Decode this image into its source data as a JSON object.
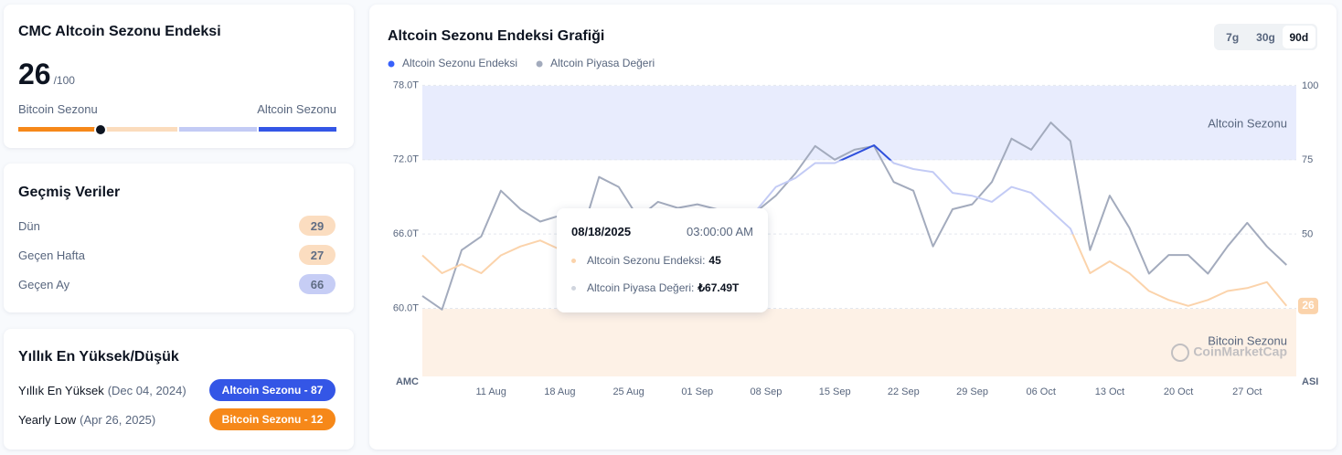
{
  "summary": {
    "title": "CMC Altcoin Sezonu Endeksi",
    "value": 26,
    "scale_label": "/100",
    "left_label": "Bitcoin Sezonu",
    "right_label": "Altcoin Sezonu",
    "gauge": {
      "range": [
        0,
        100
      ],
      "colors": [
        "#f68819",
        "#fbdcbd",
        "#c3cbf5",
        "#3456e6"
      ]
    }
  },
  "history": {
    "title": "Geçmiş Veriler",
    "rows": [
      {
        "label": "Dün",
        "value": 29
      },
      {
        "label": "Geçen Hafta",
        "value": 27
      },
      {
        "label": "Geçen Ay",
        "value": 66
      }
    ]
  },
  "yearly": {
    "title": "Yıllık En Yüksek/Düşük",
    "rows": [
      {
        "label": "Yıllık En Yüksek",
        "date": "(Dec 04, 2024)",
        "badge": "Altcoin Sezonu - 87",
        "color": "#3456e6"
      },
      {
        "label": "Yearly Low",
        "date": "(Apr 26, 2025)",
        "badge": "Bitcoin Sezonu - 12",
        "color": "#f68819"
      }
    ]
  },
  "chart_data": {
    "type": "line",
    "title": "Altcoin Sezonu Endeksi Grafiği",
    "ranges": [
      {
        "label": "7g",
        "active": false
      },
      {
        "label": "30g",
        "active": false
      },
      {
        "label": "90d",
        "active": true
      }
    ],
    "y_label": "AMC",
    "y2_label": "ASI",
    "x": [
      "2025-08-04",
      "2025-08-06",
      "2025-08-08",
      "2025-08-10",
      "2025-08-12",
      "2025-08-14",
      "2025-08-16",
      "2025-08-18",
      "2025-08-20",
      "2025-08-22",
      "2025-08-24",
      "2025-08-26",
      "2025-08-28",
      "2025-08-30",
      "2025-09-01",
      "2025-09-03",
      "2025-09-05",
      "2025-09-07",
      "2025-09-09",
      "2025-09-11",
      "2025-09-13",
      "2025-09-15",
      "2025-09-17",
      "2025-09-19",
      "2025-09-21",
      "2025-09-23",
      "2025-09-25",
      "2025-09-27",
      "2025-09-29",
      "2025-10-01",
      "2025-10-03",
      "2025-10-05",
      "2025-10-07",
      "2025-10-09",
      "2025-10-11",
      "2025-10-13",
      "2025-10-15",
      "2025-10-17",
      "2025-10-19",
      "2025-10-21",
      "2025-10-23",
      "2025-10-25",
      "2025-10-27",
      "2025-10-29",
      "2025-10-31"
    ],
    "xlim": [
      "2025-08-04",
      "2025-11-01"
    ],
    "xticks": [
      {
        "value": "2025-08-11",
        "label": "11 Aug"
      },
      {
        "value": "2025-08-18",
        "label": "18 Aug"
      },
      {
        "value": "2025-08-25",
        "label": "25 Aug"
      },
      {
        "value": "2025-09-01",
        "label": "01 Sep"
      },
      {
        "value": "2025-09-08",
        "label": "08 Sep"
      },
      {
        "value": "2025-09-15",
        "label": "15 Sep"
      },
      {
        "value": "2025-09-22",
        "label": "22 Sep"
      },
      {
        "value": "2025-09-29",
        "label": "29 Sep"
      },
      {
        "value": "2025-10-06",
        "label": "06 Oct"
      },
      {
        "value": "2025-10-13",
        "label": "13 Oct"
      },
      {
        "value": "2025-10-20",
        "label": "20 Oct"
      },
      {
        "value": "2025-10-27",
        "label": "27 Oct"
      }
    ],
    "ylim": [
      54.5,
      78.4
    ],
    "yticks": [
      {
        "value": 60,
        "label": "60.0T"
      },
      {
        "value": 66,
        "label": "66.0T"
      },
      {
        "value": 72,
        "label": "72.0T"
      },
      {
        "value": 78,
        "label": "78.0T"
      }
    ],
    "y2lim": [
      2.3,
      101.8
    ],
    "y2ticks": [
      25,
      50,
      75,
      100
    ],
    "grid": true,
    "bands": [
      {
        "label": "Altcoin Sezonu",
        "range": [
          75,
          100
        ],
        "color": "#e8ecfd"
      },
      {
        "label": "Bitcoin Sezonu",
        "range": [
          0,
          25
        ],
        "color": "#fdf1e6"
      }
    ],
    "watermark": "CoinMarketCap",
    "series": [
      {
        "name": "Altcoin Sezonu Endeksi",
        "color": "#3861fb",
        "axis": "y2",
        "zone_colors": [
          "#f68819",
          "#fbd3ab",
          "#c3cbf5",
          "#2f50dc"
        ],
        "values": [
          43,
          37,
          40,
          37,
          43,
          46,
          48,
          45,
          49,
          55,
          57,
          54,
          55,
          56,
          57,
          55,
          57,
          58,
          66,
          69,
          74,
          74,
          77,
          80,
          74,
          72,
          71,
          64,
          63,
          61,
          66,
          64,
          58,
          52,
          37,
          41,
          37,
          31,
          28,
          26,
          28,
          31,
          32,
          34,
          26
        ]
      },
      {
        "name": "Altcoin Piyasa Değeri",
        "color": "#a3abbd",
        "values": [
          61.0,
          59.9,
          64.7,
          65.8,
          69.5,
          68.0,
          67.0,
          67.49,
          65.4,
          70.6,
          69.8,
          67.3,
          68.6,
          68.1,
          68.4,
          68.0,
          67.6,
          67.8,
          69.1,
          70.9,
          73.1,
          72.0,
          72.8,
          73.1,
          70.2,
          69.5,
          65.0,
          68.0,
          68.4,
          70.2,
          73.7,
          72.8,
          75.0,
          73.5,
          64.7,
          69.1,
          66.5,
          62.8,
          64.3,
          64.3,
          62.8,
          65.0,
          66.9,
          65.0,
          63.5
        ]
      }
    ],
    "tooltip": {
      "date": "08/18/2025",
      "time": "03:00:00 AM",
      "rows": [
        {
          "label": "Altcoin Sezonu Endeksi:",
          "value": "45"
        },
        {
          "label": "Altcoin Piyasa Değeri:",
          "value": "₺67.49T"
        }
      ]
    }
  }
}
